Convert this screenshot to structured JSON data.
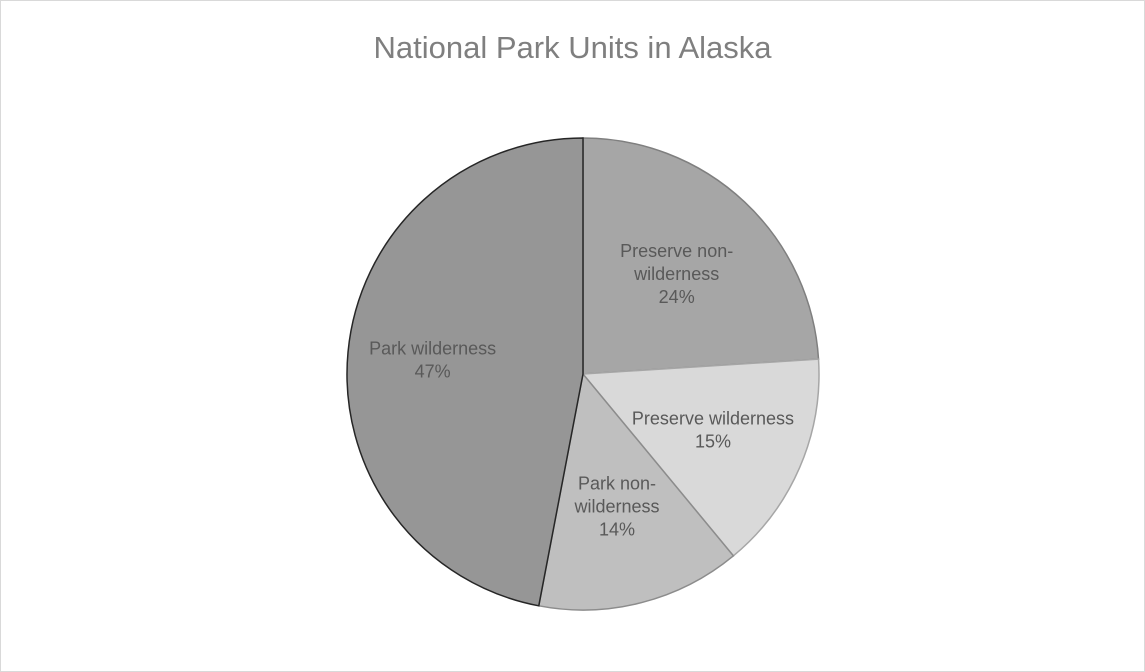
{
  "chart_data": {
    "type": "pie",
    "title": "National Park Units in Alaska",
    "slices": [
      {
        "label_lines": [
          "Preserve non-",
          "wilderness"
        ],
        "name": "Preserve non-wilderness",
        "value": 24,
        "value_label": "24%",
        "color": "#a6a6a6"
      },
      {
        "label_lines": [
          "Preserve wilderness"
        ],
        "name": "Preserve wilderness",
        "value": 15,
        "value_label": "15%",
        "color": "#d9d9d9"
      },
      {
        "label_lines": [
          "Park non-",
          "wilderness"
        ],
        "name": "Park non-wilderness",
        "value": 14,
        "value_label": "14%",
        "color": "#bfbfbf"
      },
      {
        "label_lines": [
          "Park wilderness"
        ],
        "name": "Park wilderness",
        "value": 47,
        "value_label": "47%",
        "color": "#969696"
      }
    ],
    "start_angle_deg": 0,
    "direction": "clockwise",
    "legend": "none",
    "label_position": "inside"
  }
}
